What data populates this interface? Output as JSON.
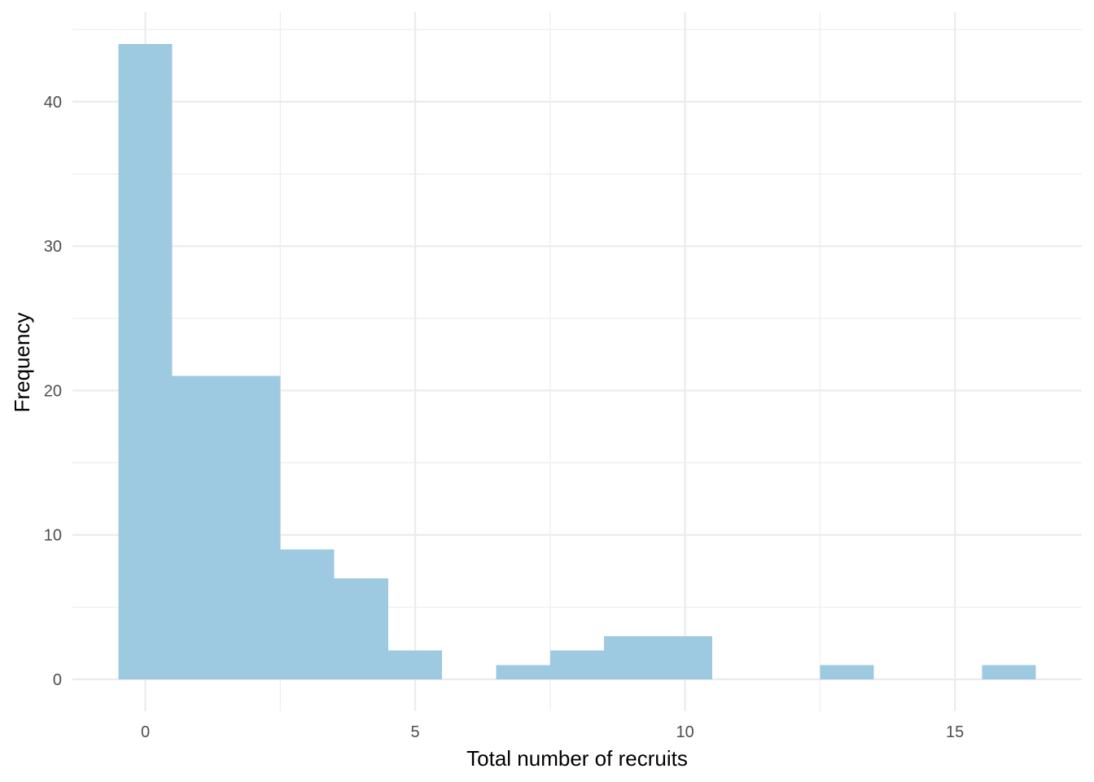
{
  "chart_data": {
    "type": "bar",
    "subtype": "histogram",
    "bins": [
      {
        "center": 0,
        "count": 44
      },
      {
        "center": 1,
        "count": 21
      },
      {
        "center": 2,
        "count": 21
      },
      {
        "center": 3,
        "count": 9
      },
      {
        "center": 4,
        "count": 7
      },
      {
        "center": 5,
        "count": 2
      },
      {
        "center": 6,
        "count": 0
      },
      {
        "center": 7,
        "count": 1
      },
      {
        "center": 8,
        "count": 2
      },
      {
        "center": 9,
        "count": 3
      },
      {
        "center": 10,
        "count": 3
      },
      {
        "center": 11,
        "count": 0
      },
      {
        "center": 12,
        "count": 0
      },
      {
        "center": 13,
        "count": 1
      },
      {
        "center": 14,
        "count": 0
      },
      {
        "center": 15,
        "count": 0
      },
      {
        "center": 16,
        "count": 1
      }
    ],
    "bin_width": 1,
    "xlabel": "Total number of recruits",
    "ylabel": "Frequency",
    "xticks": [
      0,
      5,
      10,
      15
    ],
    "yticks": [
      0,
      10,
      20,
      30,
      40
    ],
    "xlim": [
      -1.35,
      17.35
    ],
    "ylim": [
      -2.2,
      46.2
    ],
    "grid": true,
    "bar_color": "#9ecae1"
  }
}
